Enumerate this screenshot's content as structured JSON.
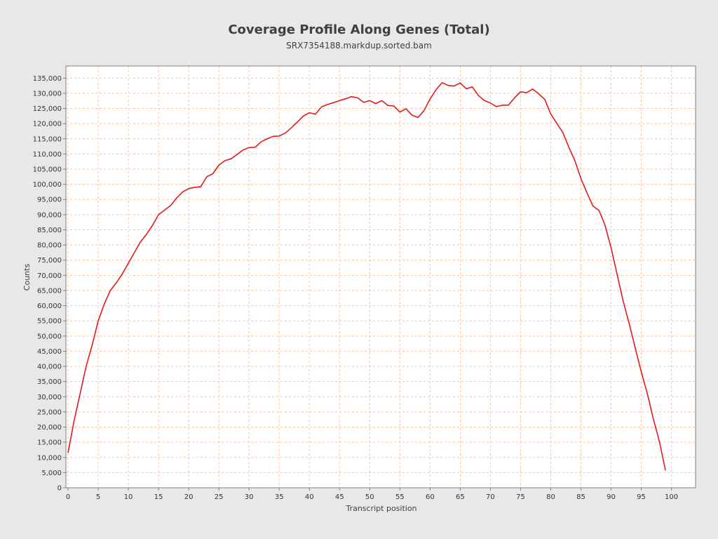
{
  "chart_data": {
    "type": "line",
    "title": "Coverage Profile Along Genes (Total)",
    "subtitle": "SRX7354188.markdup.sorted.bam",
    "xlabel": "Transcript position",
    "ylabel": "Counts",
    "xlim": [
      0,
      104
    ],
    "ylim": [
      0,
      139000
    ],
    "xticks": [
      0,
      5,
      10,
      15,
      20,
      25,
      30,
      35,
      40,
      45,
      50,
      55,
      60,
      65,
      70,
      75,
      80,
      85,
      90,
      95,
      100
    ],
    "yticks": [
      0,
      5000,
      10000,
      15000,
      20000,
      25000,
      30000,
      35000,
      40000,
      45000,
      50000,
      55000,
      60000,
      65000,
      70000,
      75000,
      80000,
      85000,
      90000,
      95000,
      100000,
      105000,
      110000,
      115000,
      120000,
      125000,
      130000,
      135000
    ],
    "ytick_labels": [
      "0",
      "5,000",
      "10,000",
      "15,000",
      "20,000",
      "25,000",
      "30,000",
      "35,000",
      "40,000",
      "45,000",
      "50,000",
      "55,000",
      "60,000",
      "65,000",
      "70,000",
      "75,000",
      "80,000",
      "85,000",
      "90,000",
      "95,000",
      "100,000",
      "105,000",
      "110,000",
      "115,000",
      "120,000",
      "125,000",
      "130,000",
      "135,000"
    ],
    "grid": true,
    "series": [
      {
        "color": "#e31a1c",
        "x": [
          0,
          1,
          2,
          3,
          4,
          5,
          6,
          7,
          8,
          9,
          10,
          11,
          12,
          13,
          14,
          15,
          16,
          17,
          18,
          19,
          20,
          21,
          22,
          23,
          24,
          25,
          26,
          27,
          28,
          29,
          30,
          31,
          32,
          33,
          34,
          35,
          36,
          37,
          38,
          39,
          40,
          41,
          42,
          43,
          44,
          45,
          46,
          47,
          48,
          49,
          50,
          51,
          52,
          53,
          54,
          55,
          56,
          57,
          58,
          59,
          60,
          61,
          62,
          63,
          64,
          65,
          66,
          67,
          68,
          69,
          70,
          71,
          72,
          73,
          74,
          75,
          76,
          77,
          78,
          79,
          80,
          81,
          82,
          83,
          84,
          85,
          86,
          87,
          88,
          89,
          90,
          91,
          92,
          93,
          94,
          95,
          96,
          97,
          98,
          99
        ],
        "y": [
          11500,
          22000,
          31000,
          40000,
          47000,
          55000,
          60500,
          65000,
          67500,
          70500,
          74000,
          77500,
          81000,
          83500,
          86500,
          90000,
          91500,
          93000,
          95500,
          97500,
          98600,
          99000,
          99200,
          102500,
          103500,
          106300,
          107800,
          108400,
          109800,
          111300,
          112100,
          112200,
          114000,
          115000,
          115800,
          115900,
          116900,
          118600,
          120500,
          122500,
          123600,
          123100,
          125500,
          126300,
          126900,
          127600,
          128200,
          128900,
          128500,
          127000,
          127600,
          126600,
          127600,
          126000,
          125800,
          123800,
          124900,
          122800,
          122000,
          124300,
          128100,
          131200,
          133500,
          132600,
          132400,
          133400,
          131500,
          132100,
          129300,
          127600,
          126800,
          125600,
          126100,
          126100,
          128500,
          130500,
          130200,
          131400,
          129800,
          128000,
          123200,
          120100,
          117100,
          112200,
          107800,
          101900,
          97200,
          92800,
          91400,
          86500,
          79100,
          70300,
          61500,
          54100,
          46100,
          38200,
          31100,
          22700,
          15300,
          5800
        ]
      }
    ]
  }
}
